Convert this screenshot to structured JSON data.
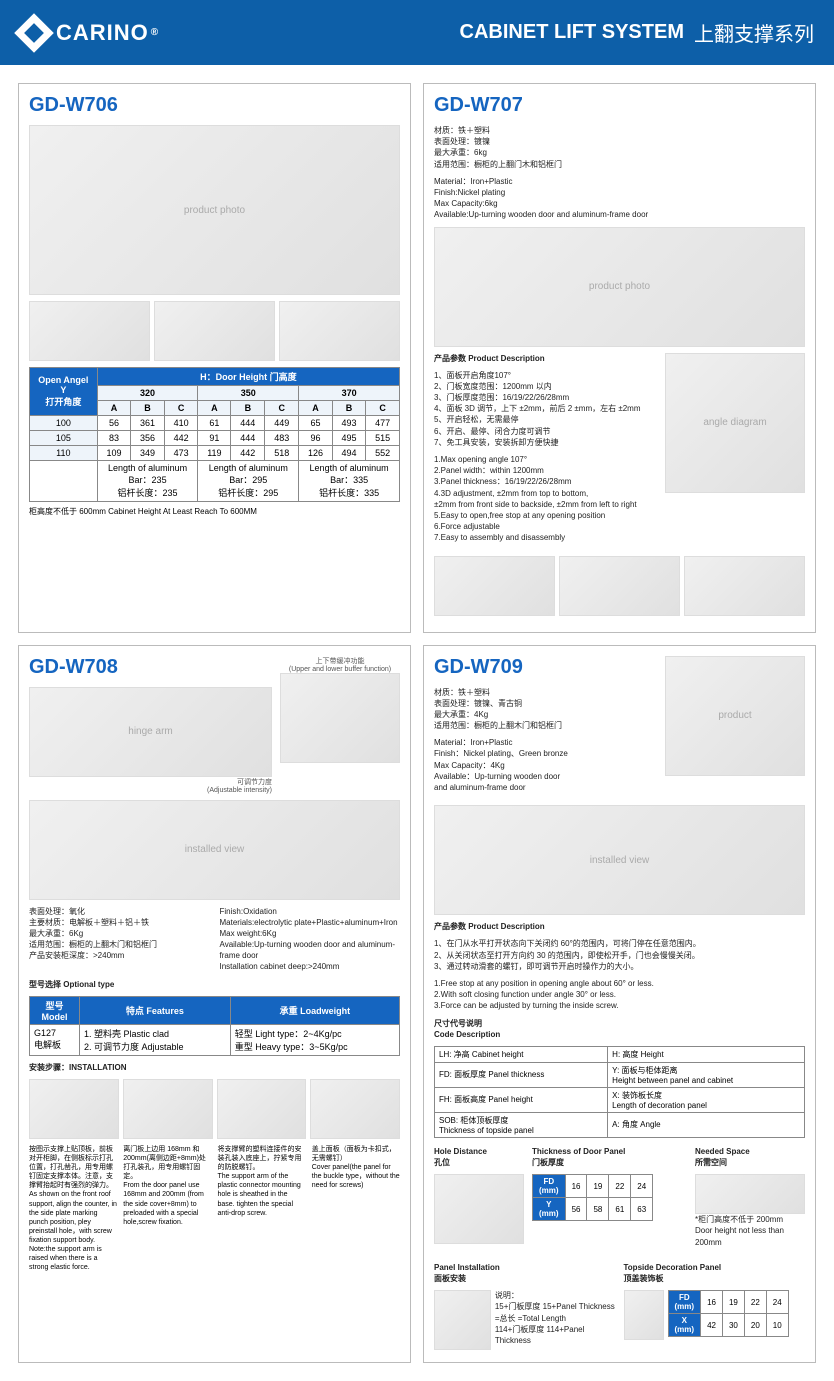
{
  "header": {
    "brand": "CARINO",
    "title_en": "CABINET LIFT SYSTEM",
    "title_cn": "上翻支撑系列"
  },
  "w706": {
    "model": "GD-W706",
    "table": {
      "open_angle_label": "Open Angel\nY\n打开角度",
      "h_label": "H：Door Height 门高度",
      "heights": [
        "320",
        "350",
        "370"
      ],
      "cols": [
        "A",
        "B",
        "C"
      ],
      "rows": [
        {
          "angle": "100",
          "vals": [
            "56",
            "361",
            "410",
            "61",
            "444",
            "449",
            "65",
            "493",
            "477"
          ]
        },
        {
          "angle": "105",
          "vals": [
            "83",
            "356",
            "442",
            "91",
            "444",
            "483",
            "96",
            "495",
            "515"
          ]
        },
        {
          "angle": "110",
          "vals": [
            "109",
            "349",
            "473",
            "119",
            "442",
            "518",
            "126",
            "494",
            "552"
          ]
        }
      ],
      "bar_labels": [
        "Length of aluminum\nBar：235\n铝杆长度：235",
        "Length of aluminum\nBar：295\n铝杆长度：295",
        "Length of aluminum\nBar：335\n铝杆长度：335"
      ]
    },
    "note": "柜高度不低于 600mm Cabinet Height At Least Reach To 600MM"
  },
  "w707": {
    "model": "GD-W707",
    "specs_cn": "材质：铁＋塑料\n表面处理：镀镍\n最大承重：6kg\n适用范围：橱柜的上翻门木和铝框门",
    "specs_en": "Material：Iron+Plastic\nFinish:Nickel plating\nMax Capacity:6kg\nAvailable:Up-turning wooden door and aluminum-frame door",
    "desc_title": "产品参数  Product Description",
    "desc_cn": "1、面板开启角度107°\n2、门板宽度范围：1200mm 以内\n3、门板厚度范围：16/19/22/26/28mm\n4、面板 3D 调节，上下 ±2mm，前后 2 ±mm，左右 ±2mm\n5、开启轻松，无需最停\n6、开启、最停、闭合力度可调节\n7、免工具安装，安装拆卸方便快捷",
    "desc_en": "1.Max opening angle 107°\n2.Panel width：within 1200mm\n3.Panel thickness：16/19/22/26/28mm\n4.3D adjustment, ±2mm from top to bottom,\n  ±2mm from front side to backside, ±2mm from left to right\n5.Easy to open,free stop at any opening position\n6.Force adjustable\n7.Easy to assembly and disassembly"
  },
  "w708": {
    "model": "GD-W708",
    "caption1": "上下带缓冲功能\n(Upper and lower buffer function)",
    "caption2": "可调节力度\n(Adjustable intensity)",
    "specs_cn": "表面处理：氧化\n主要材质：电解板＋塑料＋铝＋铁\n最大承重：6Kg\n适用范围：橱柜的上翻木门和铝框门\n产品安装柜深度：>240mm",
    "specs_en": "Finish:Oxidation\nMaterials:electrolytic plate+Plastic+aluminum+Iron\nMax weight:6Kg\nAvailable:Up-turning wooden door and aluminum-frame door\nInstallation cabinet deep:>240mm",
    "opt_label": "型号选择  Optional type",
    "opt_table": {
      "headers": [
        "型号\nModel",
        "特点 Features",
        "承重 Loadweight"
      ],
      "row": [
        "G127\n电解板",
        "1. 塑料壳 Plastic clad\n2. 可调节力度 Adjustable",
        "轻型 Light type：2~4Kg/pc\n重型 Heavy type：3~5Kg/pc"
      ]
    },
    "install_label": "安装步骤：INSTALLATION",
    "install_steps": [
      "按图示支撑上贴顶板，前板对开柜脚，在侧板标示打孔位置，打孔凿孔，用专用螺钉固定支撑本体。注意，支撑臂抬起时有强烈的弹力。\nAs shown on the front roof support, align the counter, in the side plate marking punch position, pley preinstall hole，with screw fixation support body. Note:the support arm is raised when there is a strong elastic force.",
      "离门板上边用 168mm 和 200mm(离侧边距+8mm)处打孔装孔，用专用螺钉固定。\nFrom the door panel use 168mm and 200mm (from the side cover+8mm) to preloaded with a special hole,screw fixation.",
      "将支撑臂的塑料连接件的安装孔装入底座上，拧紧专用的防脱螺钉。\nThe support arm of the plastic connector mounting hole is sheathed in the base. tighten the special anti-drop screw.",
      "盖上面板（面板为卡扣式，无需螺钉）\nCover panel(the panel for the buckle type，without the need for screws)"
    ]
  },
  "w709": {
    "model": "GD-W709",
    "specs_cn": "材质：铁＋塑料\n表面处理：镀镍、青古铜\n最大承重：4Kg\n适用范围：橱柜的上翻木门和铝框门",
    "specs_en": "Material：Iron+Plastic\nFinish：Nickel plating、Green bronze\nMax Capacity：4Kg\nAvailable：Up-turning wooden door\n              and aluminum-frame door",
    "desc_title": "产品参数 Product Description",
    "desc_cn": "1、在门从水平打开状态向下关闭约 60°的范围内，可将门停在任意范围内。\n2、从关闭状态至打开方向约 30 的范围内，即使松开手，门也会慢慢关闭。\n3、通过转动滑套的螺钉，即可调节开启时操作力的大小。",
    "desc_en": "1.Free stop at any position in opening angle about 60° or less.\n2.With soft closing function under angle 30° or less.\n3.Force can be adjusted by turning the inside screw.",
    "code_title": "尺寸代号说明\nCode Description",
    "codes": [
      [
        "LH: 净高 Cabinet height",
        "H: 高度 Height"
      ],
      [
        "FD: 面板厚度 Panel thickness",
        "Y: 面板与柜体距离\nHeight between panel and cabinet"
      ],
      [
        "FH: 面板高度 Panel height",
        "X: 装饰板长度\nLength of decoration panel"
      ],
      [
        "SOB: 柜体顶板厚度\nThickness of topside panel",
        "A: 角度 Angle"
      ]
    ],
    "hole_label": "Hole Distance\n孔位",
    "thick_label": "Thickness of Door Panel\n门板厚度",
    "needed_label": "Needed Space\n所需空间",
    "thick_table": {
      "rows": [
        {
          "label": "FD\n(mm)",
          "vals": [
            "16",
            "19",
            "22",
            "24"
          ]
        },
        {
          "label": "Y\n(mm)",
          "vals": [
            "56",
            "58",
            "61",
            "63"
          ]
        }
      ]
    },
    "needed_note": "*柜门高度不低于 200mm\nDoor height not less than 200mm",
    "panel_install_label": "Panel Installation\n面板安装",
    "panel_install_text": "说明：\n15+门板厚度    15+Panel Thickness\n=总长            =Total Length\n114+门板厚度  114+Panel Thickness",
    "topside_label": "Topside Decoration Panel\n顶盖装饰板",
    "topside_table": {
      "rows": [
        {
          "label": "FD\n(mm)",
          "vals": [
            "16",
            "19",
            "22",
            "24"
          ]
        },
        {
          "label": "X\n(mm)",
          "vals": [
            "42",
            "30",
            "20",
            "10"
          ]
        }
      ]
    }
  }
}
